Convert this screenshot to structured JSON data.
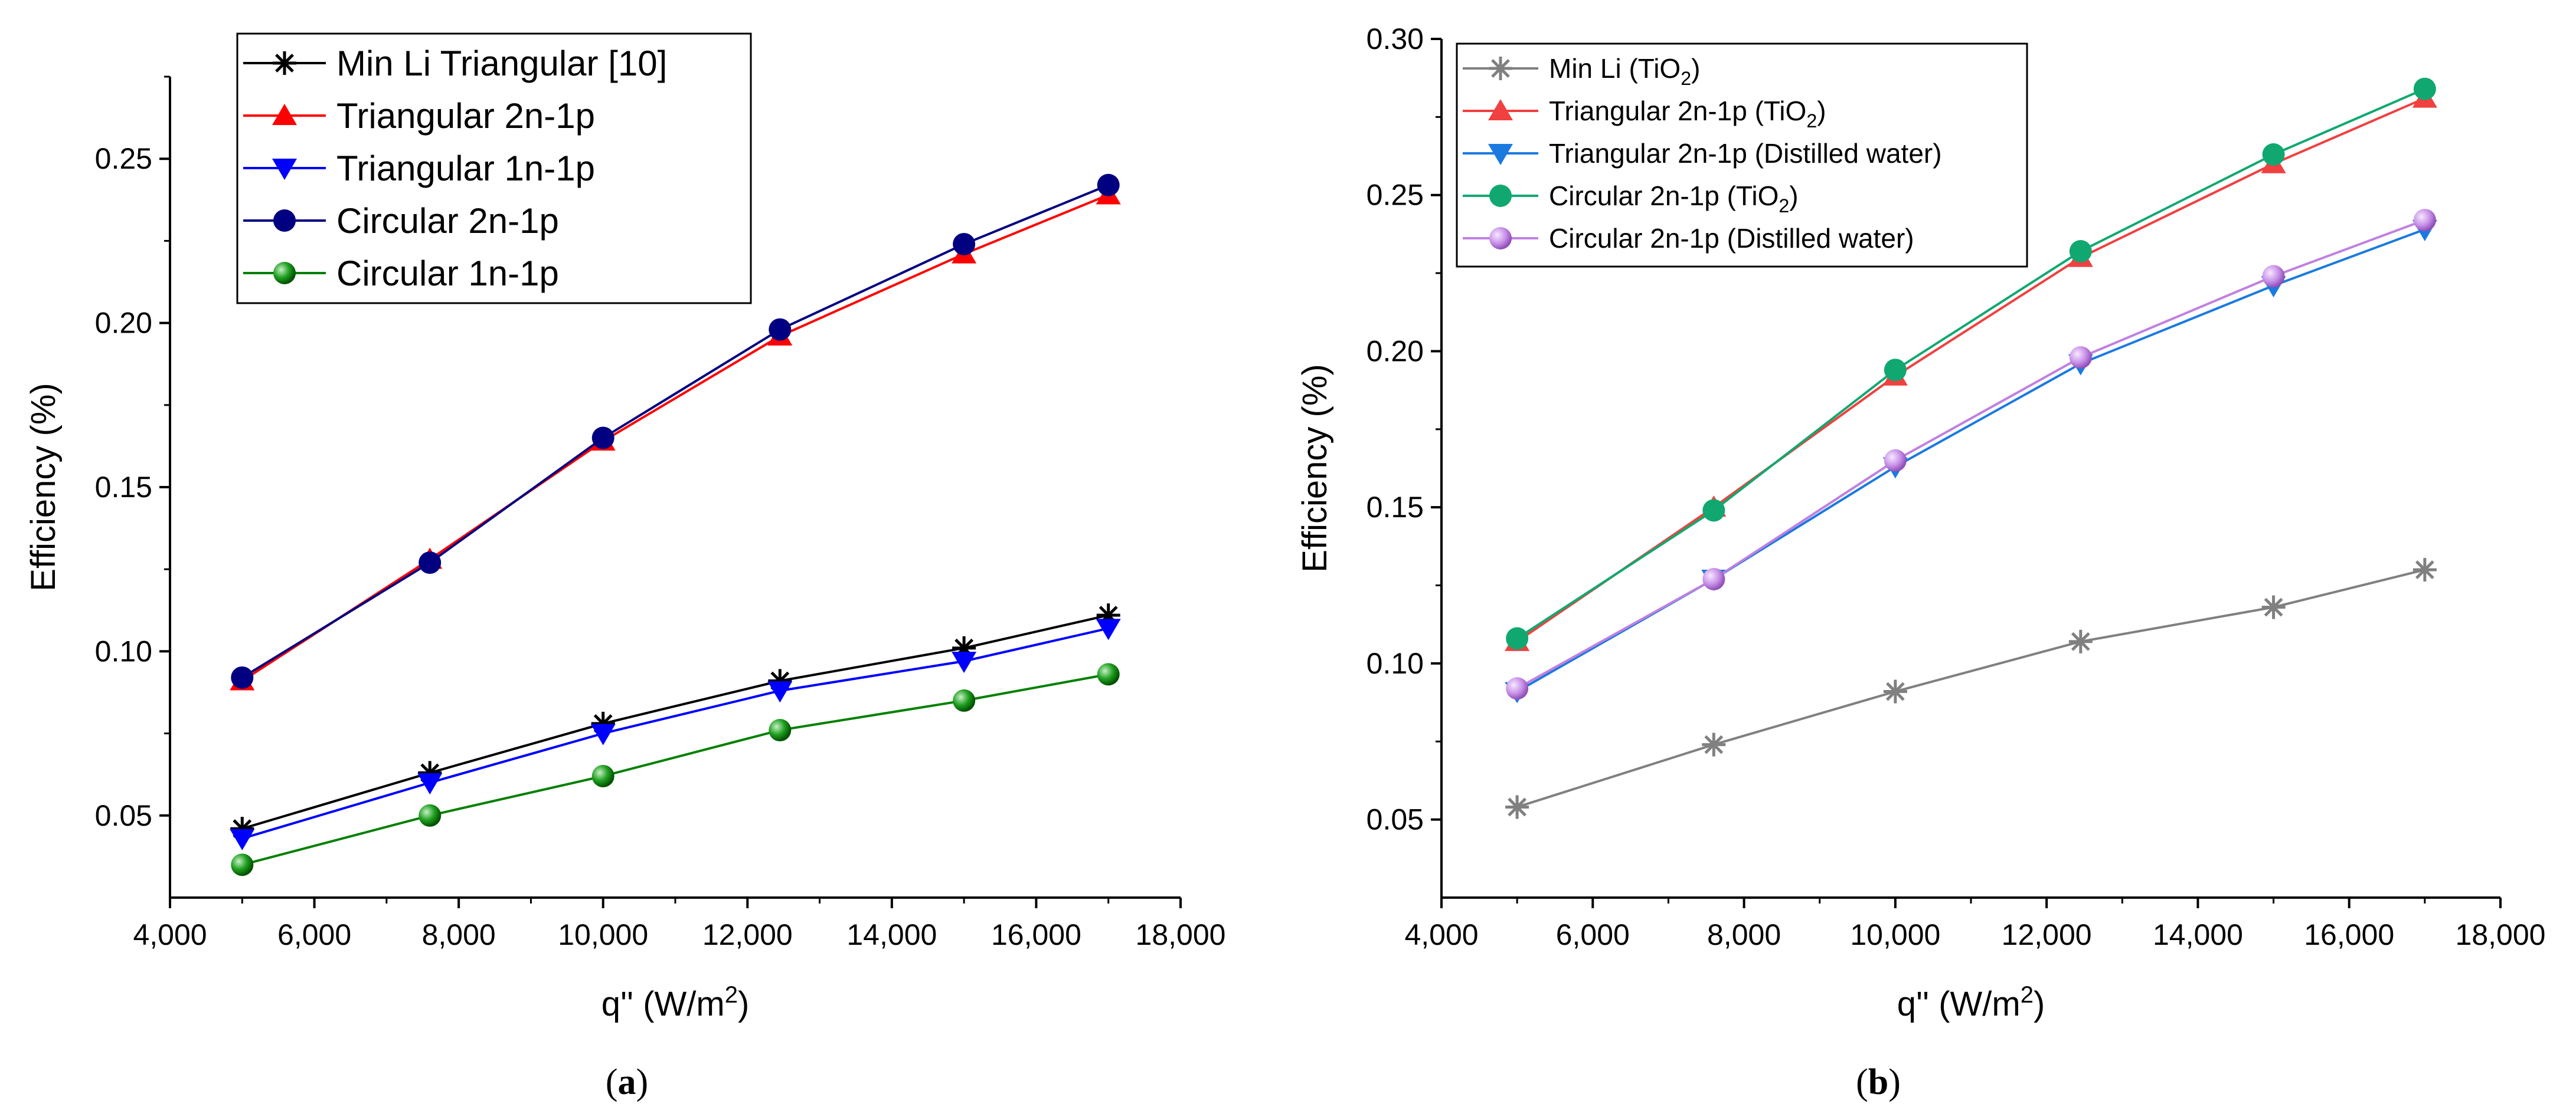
{
  "figure": {
    "panel_a_label": "a",
    "panel_b_label": "b"
  },
  "chart_data": [
    {
      "type": "line",
      "panel": "a",
      "title": "",
      "xlabel": "q'' (W/m²)",
      "ylabel": "Efficiency (%)",
      "xlim": [
        4000,
        18000
      ],
      "ylim": [
        0.025,
        0.275
      ],
      "xticks": [
        4000,
        6000,
        8000,
        10000,
        12000,
        14000,
        16000,
        18000
      ],
      "xtick_labels": [
        "4,000",
        "6,000",
        "8,000",
        "10,000",
        "12,000",
        "14,000",
        "16,000",
        "18,000"
      ],
      "yticks": [
        0.05,
        0.1,
        0.15,
        0.2,
        0.25
      ],
      "ytick_labels": [
        "0.05",
        "0.10",
        "0.15",
        "0.20",
        "0.25"
      ],
      "legend_position": "top-center",
      "x": [
        5000,
        7600,
        10000,
        12450,
        15000,
        17000
      ],
      "series": [
        {
          "name": "Min Li Triangular [10]",
          "color": "#000000",
          "marker": "asterisk",
          "values": [
            0.046,
            0.063,
            0.078,
            0.091,
            0.101,
            0.111
          ]
        },
        {
          "name": "Triangular 2n-1p",
          "color": "#ff0000",
          "marker": "triangle-up",
          "values": [
            0.091,
            0.128,
            0.164,
            0.196,
            0.221,
            0.239
          ]
        },
        {
          "name": "Triangular 1n-1p",
          "color": "#0000ff",
          "marker": "triangle-down",
          "values": [
            0.043,
            0.06,
            0.075,
            0.088,
            0.097,
            0.107
          ]
        },
        {
          "name": "Circular 2n-1p",
          "color": "#000080",
          "marker": "circle",
          "values": [
            0.092,
            0.127,
            0.165,
            0.198,
            0.224,
            0.242
          ]
        },
        {
          "name": "Circular 1n-1p",
          "color": "#008000",
          "marker": "sphere",
          "values": [
            0.035,
            0.05,
            0.062,
            0.076,
            0.085,
            0.093
          ]
        }
      ]
    },
    {
      "type": "line",
      "panel": "b",
      "title": "",
      "xlabel": "q'' (W/m²)",
      "ylabel": "Efficiency (%)",
      "xlim": [
        4000,
        18000
      ],
      "ylim": [
        0.025,
        0.3
      ],
      "xticks": [
        4000,
        6000,
        8000,
        10000,
        12000,
        14000,
        16000,
        18000
      ],
      "xtick_labels": [
        "4,000",
        "6,000",
        "8,000",
        "10,000",
        "12,000",
        "14,000",
        "16,000",
        "18,000"
      ],
      "yticks": [
        0.05,
        0.1,
        0.15,
        0.2,
        0.25,
        0.3
      ],
      "ytick_labels": [
        "0.05",
        "0.10",
        "0.15",
        "0.20",
        "0.25",
        "0.30"
      ],
      "legend_position": "top-left",
      "x": [
        5000,
        7600,
        10000,
        12450,
        15000,
        17000
      ],
      "series": [
        {
          "name": "Min Li (TiO2)",
          "label_main": "Min Li (TiO",
          "label_sub": "2",
          "label_tail": ")",
          "color": "#808080",
          "marker": "asterisk",
          "values": [
            0.054,
            0.074,
            0.091,
            0.107,
            0.118,
            0.13
          ]
        },
        {
          "name": "Triangular 2n-1p (TiO2)",
          "label_main": "Triangular 2n-1p (TiO",
          "label_sub": "2",
          "label_tail": ")",
          "color": "#f04040",
          "marker": "triangle-up",
          "values": [
            0.107,
            0.15,
            0.192,
            0.23,
            0.26,
            0.281
          ]
        },
        {
          "name": "Triangular 2n-1p (Distilled water)",
          "label_main": "Triangular 2n-1p (Distilled water)",
          "label_sub": "",
          "label_tail": "",
          "color": "#1a7ae0",
          "marker": "triangle-down",
          "values": [
            0.091,
            0.127,
            0.163,
            0.196,
            0.221,
            0.239
          ]
        },
        {
          "name": "Circular 2n-1p (TiO2)",
          "label_main": "Circular 2n-1p (TiO",
          "label_sub": "2",
          "label_tail": ")",
          "color": "#10a870",
          "marker": "circle",
          "values": [
            0.108,
            0.149,
            0.194,
            0.232,
            0.263,
            0.284
          ]
        },
        {
          "name": "Circular 2n-1p (Distilled water)",
          "label_main": "Circular 2n-1p (Distilled water)",
          "label_sub": "",
          "label_tail": "",
          "color": "#c080e0",
          "marker": "sphere",
          "values": [
            0.092,
            0.127,
            0.165,
            0.198,
            0.224,
            0.242
          ]
        }
      ]
    }
  ]
}
